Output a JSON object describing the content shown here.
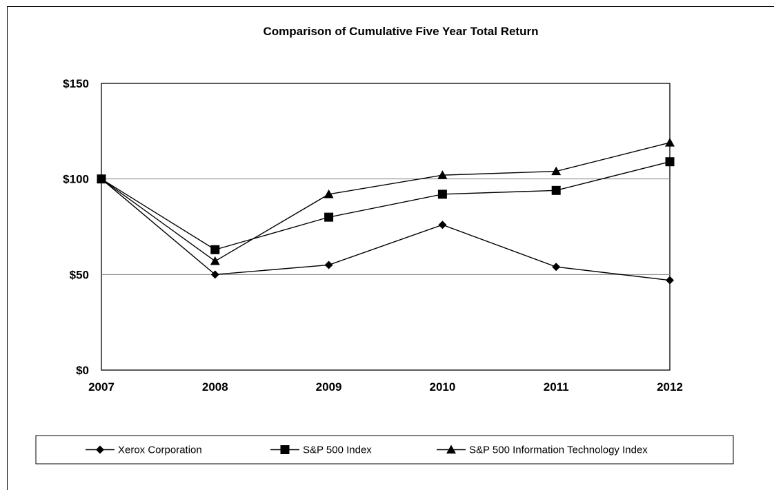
{
  "chart_data": {
    "type": "line",
    "title": "Comparison of Cumulative Five Year Total Return",
    "xlabel": "",
    "ylabel": "",
    "x": [
      "2007",
      "2008",
      "2009",
      "2010",
      "2011",
      "2012"
    ],
    "ylim": [
      0,
      150
    ],
    "y_ticks": [
      0,
      50,
      100,
      150
    ],
    "y_tick_labels": [
      "$0",
      "$50",
      "$100",
      "$150"
    ],
    "grid": "horizontal at $50 and $100",
    "legend_position": "bottom",
    "series": [
      {
        "name": "Xerox Corporation",
        "marker": "diamond",
        "values": [
          100,
          50,
          55,
          76,
          54,
          47
        ]
      },
      {
        "name": "S&P 500 Index",
        "marker": "square",
        "values": [
          100,
          63,
          80,
          92,
          94,
          109
        ]
      },
      {
        "name": "S&P 500 Information Technology Index",
        "marker": "triangle",
        "values": [
          100,
          57,
          92,
          102,
          104,
          119
        ]
      }
    ],
    "colors": {
      "lines": "#000000",
      "grid": "#808080",
      "background": "#ffffff"
    }
  }
}
